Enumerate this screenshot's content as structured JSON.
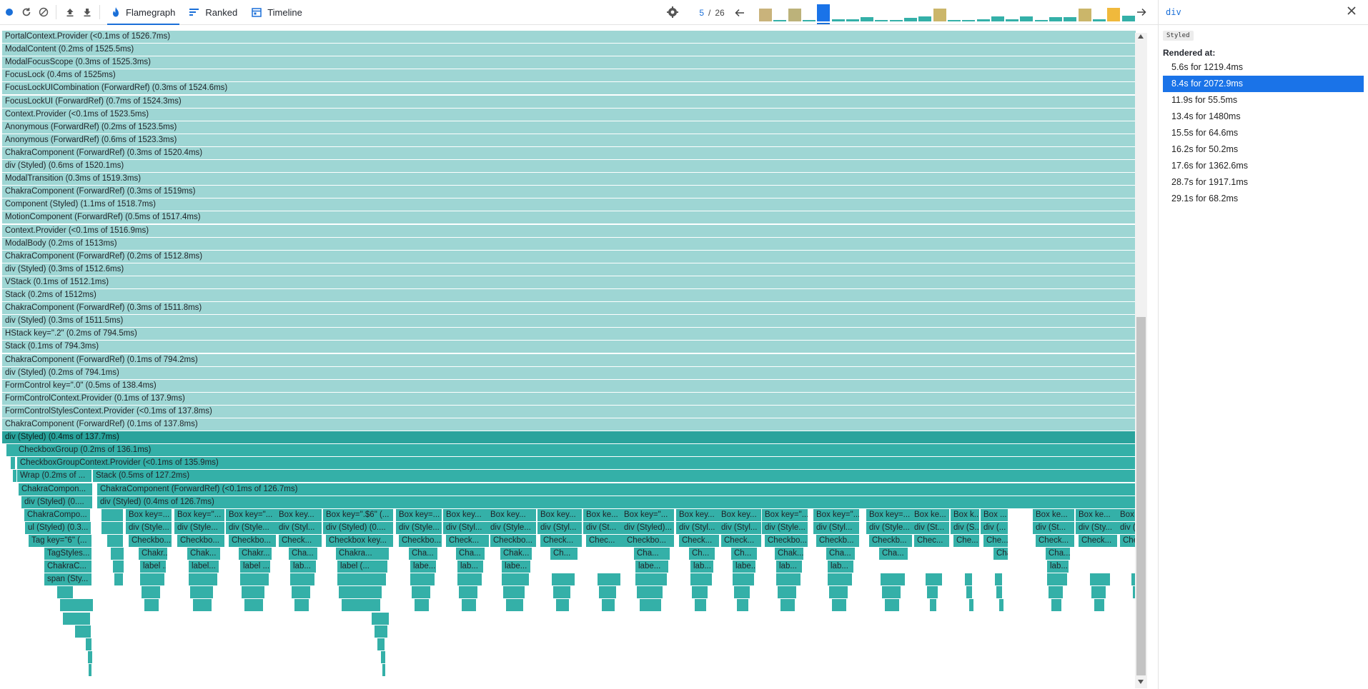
{
  "toolbar": {
    "tabs": [
      {
        "label": "Flamegraph",
        "icon": "flame-icon",
        "active": true
      },
      {
        "label": "Ranked",
        "icon": "ranked-icon",
        "active": false
      },
      {
        "label": "Timeline",
        "icon": "timeline-icon",
        "active": false
      }
    ],
    "commit_index": "5",
    "commit_separator": "/",
    "commit_total": "26",
    "colors": {
      "accent": "#1a6fd8",
      "flame_light": "#9ed6d4",
      "flame_dark": "#34b0a8",
      "commit_gold": "#c9b46a",
      "commit_teal": "#3ab8ae"
    }
  },
  "commits": [
    {
      "value": 0.75,
      "color": "#c9b37b"
    },
    {
      "value": 0.06,
      "color": "#34b0a8"
    },
    {
      "value": 0.75,
      "color": "#bcb27a"
    },
    {
      "value": 0.1,
      "color": "#34b0a8"
    },
    {
      "value": 1.0,
      "color": "#1a73e8",
      "selected": true
    },
    {
      "value": 0.12,
      "color": "#34b0a8"
    },
    {
      "value": 0.12,
      "color": "#34b0a8"
    },
    {
      "value": 0.25,
      "color": "#34b0a8"
    },
    {
      "value": 0.1,
      "color": "#34b0a8"
    },
    {
      "value": 0.1,
      "color": "#34b0a8"
    },
    {
      "value": 0.22,
      "color": "#34b0a8"
    },
    {
      "value": 0.28,
      "color": "#34b0a8"
    },
    {
      "value": 0.75,
      "color": "#cbb66a"
    },
    {
      "value": 0.08,
      "color": "#34b0a8"
    },
    {
      "value": 0.08,
      "color": "#34b0a8"
    },
    {
      "value": 0.12,
      "color": "#34b0a8"
    },
    {
      "value": 0.28,
      "color": "#34b0a8"
    },
    {
      "value": 0.12,
      "color": "#34b0a8"
    },
    {
      "value": 0.3,
      "color": "#34b0a8"
    },
    {
      "value": 0.1,
      "color": "#34b0a8"
    },
    {
      "value": 0.25,
      "color": "#34b0a8"
    },
    {
      "value": 0.25,
      "color": "#34b0a8"
    },
    {
      "value": 0.75,
      "color": "#cbb66a"
    },
    {
      "value": 0.12,
      "color": "#34b0a8"
    },
    {
      "value": 0.8,
      "color": "#f0b93c"
    },
    {
      "value": 0.32,
      "color": "#34b0a8"
    }
  ],
  "flamegraph": {
    "stack": [
      "PortalContext.Provider (<0.1ms of 1526.7ms)",
      "ModalContent (0.2ms of 1525.5ms)",
      "ModalFocusScope (0.3ms of 1525.3ms)",
      "FocusLock (0.4ms of 1525ms)",
      "FocusLockUICombination (ForwardRef) (0.3ms of 1524.6ms)",
      "FocusLockUI (ForwardRef) (0.7ms of 1524.3ms)",
      "Context.Provider (<0.1ms of 1523.5ms)",
      "Anonymous (ForwardRef) (0.2ms of 1523.5ms)",
      "Anonymous (ForwardRef) (0.6ms of 1523.3ms)",
      "ChakraComponent (ForwardRef) (0.3ms of 1520.4ms)",
      "div (Styled) (0.6ms of 1520.1ms)",
      "ModalTransition (0.3ms of 1519.3ms)",
      "ChakraComponent (ForwardRef) (0.3ms of 1519ms)",
      "Component (Styled) (1.1ms of 1518.7ms)",
      "MotionComponent (ForwardRef) (0.5ms of 1517.4ms)",
      "Context.Provider (<0.1ms of 1516.9ms)",
      "ModalBody (0.2ms of 1513ms)",
      "ChakraComponent (ForwardRef) (0.2ms of 1512.8ms)",
      "div (Styled) (0.3ms of 1512.6ms)",
      "VStack (0.1ms of 1512.1ms)",
      "Stack (0.2ms of 1512ms)",
      "ChakraComponent (ForwardRef) (0.3ms of 1511.8ms)",
      "div (Styled) (0.3ms of 1511.5ms)",
      "HStack key=\".2\" (0.2ms of 794.5ms)",
      "Stack (0.1ms of 794.3ms)",
      "ChakraComponent (ForwardRef) (0.1ms of 794.2ms)",
      "div (Styled) (0.2ms of 794.1ms)",
      "FormControl key=\".0\" (0.5ms of 138.4ms)",
      "FormControlContext.Provider (0.1ms of 137.9ms)",
      "FormControlStylesContext.Provider (<0.1ms of 137.8ms)",
      "ChakraComponent (ForwardRef) (0.1ms of 137.8ms)"
    ],
    "selected": "div (Styled) (0.4ms of 137.7ms)",
    "row_checkbox_group": "CheckboxGroup (0.2ms of 136.1ms)",
    "row_checkbox_ctx": "CheckboxGroupContext.Provider (<0.1ms of 135.9ms)",
    "wrap": "Wrap (0.2ms of ...",
    "stack2": "Stack (0.5ms of 127.2ms)",
    "chakra_left": "ChakraCompon...",
    "chakra_right": "ChakraComponent (ForwardRef) (<0.1ms of 126.7ms)",
    "div_left": "div (Styled) (0....",
    "div_right": "div (Styled) (0.4ms of 126.7ms)",
    "left_col": [
      "ChakraCompo...",
      "ul (Styled) (0.3...",
      "Tag key=\"6\" (...",
      "TagStyles...",
      "ChakraC...",
      "span (Sty..."
    ],
    "box_row": [
      "Box key=...",
      "Box key=\"...",
      "Box key=\"...",
      "Box key...",
      "Box key=\".$6\" (...",
      "Box key=...",
      "Box key...",
      "Box key...",
      "Box key...",
      "Box ke...",
      "Box key=\"...",
      "Box key...",
      "Box key...",
      "Box key=\"...",
      "Box key=\"...",
      "Box key=...",
      "Box ke...",
      "Box k...",
      "Box ...",
      "Box ke...",
      "Box ke...",
      "Box"
    ],
    "div_row": [
      "div (Style...",
      "div (Style...",
      "div (Style...",
      "div (Styl...",
      "div (Styled) (0....",
      "div (Style...",
      "div (Styl...",
      "div (Style...",
      "div (Styl...",
      "div (St...",
      "div (Styled)...",
      "div (Styl...",
      "div (Styl...",
      "div (Style...",
      "div (Styl...",
      "div (Style...",
      "div (St...",
      "div (S...",
      "div (...",
      "div (St...",
      "div (Sty...",
      "div ("
    ],
    "checkbox_row": [
      "Checkbo...",
      "Checkbo...",
      "Checkbo...",
      "Check...",
      "Checkbox key...",
      "Checkbo...",
      "Check...",
      "Checkbo...",
      "Check...",
      "Chec...",
      "Checkbo...",
      "Check...",
      "Check...",
      "Checkbo...",
      "Checkb...",
      "Checkb...",
      "Chec...",
      "Che...",
      "Che...",
      "Check...",
      "Check...",
      "Che"
    ],
    "chakra_row": [
      "Chakr...",
      "Chak...",
      "Chakr...",
      "Cha...",
      "Chakra...",
      "Cha...",
      "Cha...",
      "Chak...",
      "Ch...",
      "Cha...",
      "Ch...",
      "Ch...",
      "Chak...",
      "Cha...",
      "Cha...",
      "Cha...",
      "Cha..."
    ],
    "label_row": [
      "label ...",
      "label...",
      "label ...",
      "lab...",
      "label (...",
      "labe...",
      "lab...",
      "labe...",
      "labe...",
      "lab...",
      "labe...",
      "lab...",
      "lab...",
      "lab..."
    ]
  },
  "scrollbar": {
    "up": "scroll-up",
    "down": "scroll-down"
  },
  "sidepanel": {
    "title": "div",
    "badge": "Styled",
    "rendered_label": "Rendered at:",
    "renders": [
      "5.6s for 1219.4ms",
      "8.4s for 2072.9ms",
      "11.9s for 55.5ms",
      "13.4s for 1480ms",
      "15.5s for 64.6ms",
      "16.2s for 50.2ms",
      "17.6s for 1362.6ms",
      "28.7s for 1917.1ms",
      "29.1s for 68.2ms"
    ],
    "selected_index": 1
  }
}
